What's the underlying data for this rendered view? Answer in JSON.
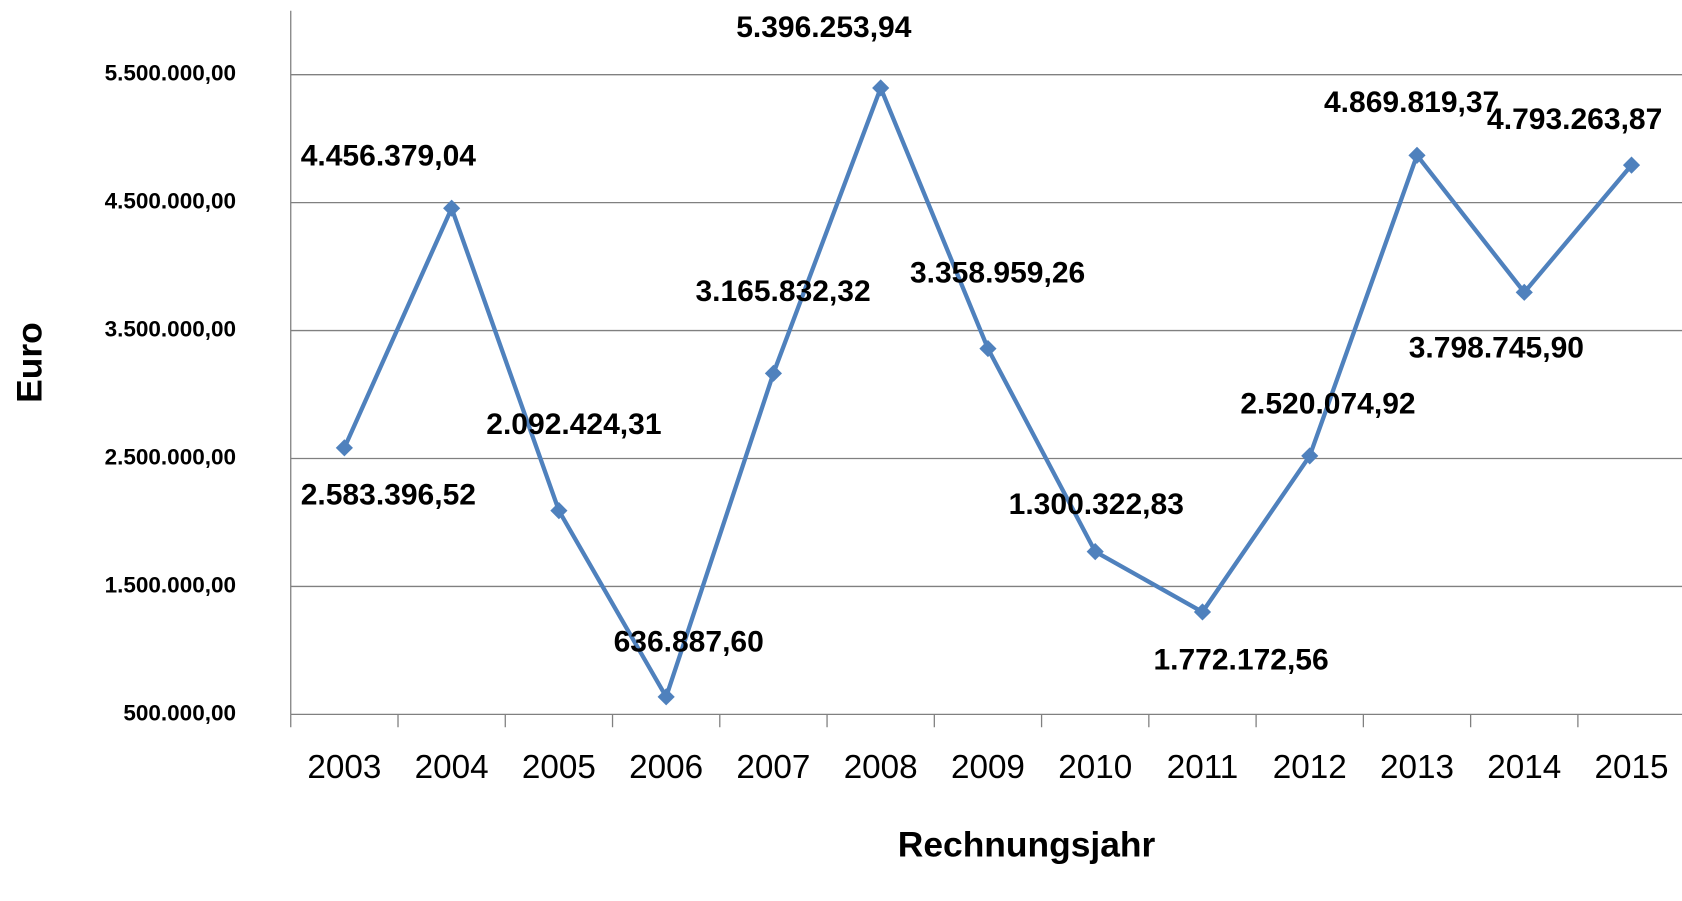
{
  "chart_data": {
    "type": "line",
    "x_label": "Rechnungsjahr",
    "y_label": "Euro",
    "categories": [
      "2003",
      "2004",
      "2005",
      "2006",
      "2007",
      "2008",
      "2009",
      "2010",
      "2011",
      "2012",
      "2013",
      "2014",
      "2015"
    ],
    "series": [
      {
        "name": "Euro",
        "color": "#4f81bd",
        "values": [
          2583396.52,
          4456379.04,
          2092424.31,
          636887.6,
          3165832.32,
          5396253.94,
          3358959.26,
          1772172.56,
          1300322.83,
          2520074.92,
          4869819.37,
          3798745.9,
          4793263.87
        ],
        "value_labels": [
          "2.583.396,52",
          "4.456.379,04",
          "2.092.424,31",
          "636.887,60",
          "3.165.832,32",
          "5.396.253,94",
          "3.358.959,26",
          "1.772.172,56",
          "1.300.322,83",
          "2.520.074,92",
          "4.869.819,37",
          "3.798.745,90",
          "4.793.263,87"
        ]
      }
    ],
    "ylim": [
      500000,
      6000000
    ],
    "yticks": [
      {
        "value": 500000,
        "label": "500.000,00"
      },
      {
        "value": 1500000,
        "label": "1.500.000,00"
      },
      {
        "value": 2500000,
        "label": "2.500.000,00"
      },
      {
        "value": 3500000,
        "label": "3.500.000,00"
      },
      {
        "value": 4500000,
        "label": "4.500.000,00"
      },
      {
        "value": 5500000,
        "label": "5.500.000,00"
      }
    ],
    "grid": true
  }
}
